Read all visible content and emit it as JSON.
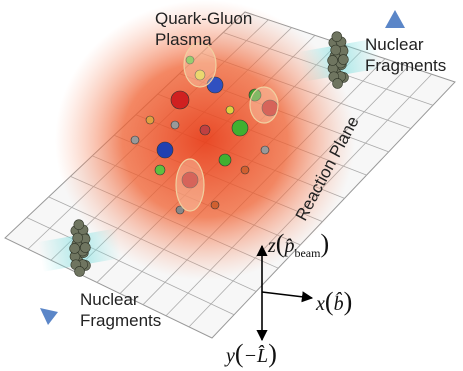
{
  "qgp_label": [
    "Quark-Gluon",
    "Plasma"
  ],
  "fragments_top": [
    "Nuclear",
    "Fragments"
  ],
  "fragments_bottom": [
    "Nuclear",
    "Fragments"
  ],
  "reaction_plane": "Reaction Plane",
  "axes": {
    "z": {
      "symbol": "z",
      "argument": "p̂",
      "subscript": "beam"
    },
    "x": {
      "symbol": "x",
      "argument": "b̂"
    },
    "y": {
      "symbol": "y",
      "argument": "−L̂"
    }
  }
}
